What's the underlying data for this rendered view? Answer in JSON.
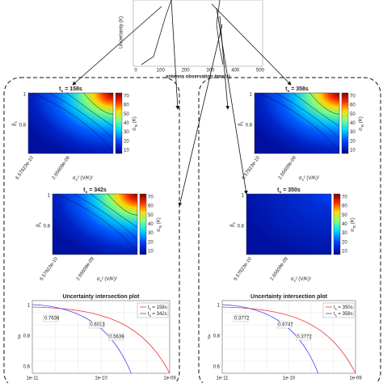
{
  "top_plot": {
    "y_label": "Uncertainty (K)",
    "x_label": "antenna observation time(s)",
    "x_ticks": [
      "0",
      "100",
      "200",
      "300",
      "400",
      "500"
    ]
  },
  "heatmap_axes": {
    "y_label": {
      "var": "β",
      "sub": "s"
    },
    "y_ticks": [
      "1",
      "0.8"
    ],
    "x_ticks": [
      "6.57923e-10",
      "2.65609e-09"
    ],
    "x_label": {
      "var": "σ",
      "sub": "s",
      "rest": "² (V/K)²"
    },
    "colorbar_ticks": [
      "70",
      "60",
      "50",
      "40",
      "30",
      "20",
      "10"
    ],
    "colorbar_label": {
      "var": "σ",
      "sub": "Ts",
      "rest": " (K)"
    }
  },
  "panels": [
    {
      "t": "t",
      "sub": "s",
      "text": " = 158s"
    },
    {
      "t": "t",
      "sub": "s",
      "text": " = 342s"
    },
    {
      "t": "t",
      "sub": "s",
      "text": " = 358s"
    },
    {
      "t": "t",
      "sub": "s",
      "text": " = 350s"
    }
  ],
  "intersection_plots": [
    {
      "title": "Uncertainty intersection plot",
      "y_ticks": [
        "1",
        "0.8",
        "0.6"
      ],
      "x_ticks": [
        "1e-11",
        "1e-10",
        "1e-09"
      ],
      "labels": [
        "0.7636",
        "0.6013",
        "0.5639"
      ],
      "legend": [
        {
          "t": "t",
          "sub": "s",
          "text": " = 158s"
        },
        {
          "t": "t",
          "sub": "s",
          "text": " = 342s"
        }
      ]
    },
    {
      "title": "Uncertainty intersection plot",
      "y_ticks": [
        "1",
        "0.8",
        "0.6"
      ],
      "x_ticks": [
        "1e-11",
        "1e-10",
        "1e-09"
      ],
      "labels": [
        "0.3772",
        "0.6747",
        "0.3772"
      ],
      "legend": [
        {
          "t": "t",
          "sub": "s",
          "text": " = 350s"
        },
        {
          "t": "t",
          "sub": "s",
          "text": " = 358s"
        }
      ]
    }
  ]
}
